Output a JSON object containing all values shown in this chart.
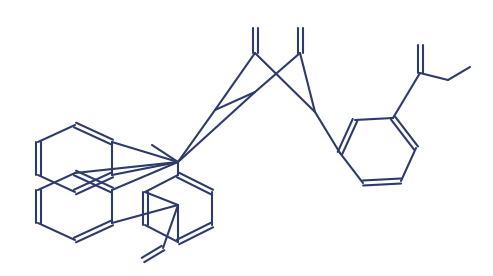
{
  "bg_color": "#ffffff",
  "line_color": "#2d3a6b",
  "line_width": 1.5,
  "fig_width": 4.93,
  "fig_height": 2.76,
  "dpi": 100
}
